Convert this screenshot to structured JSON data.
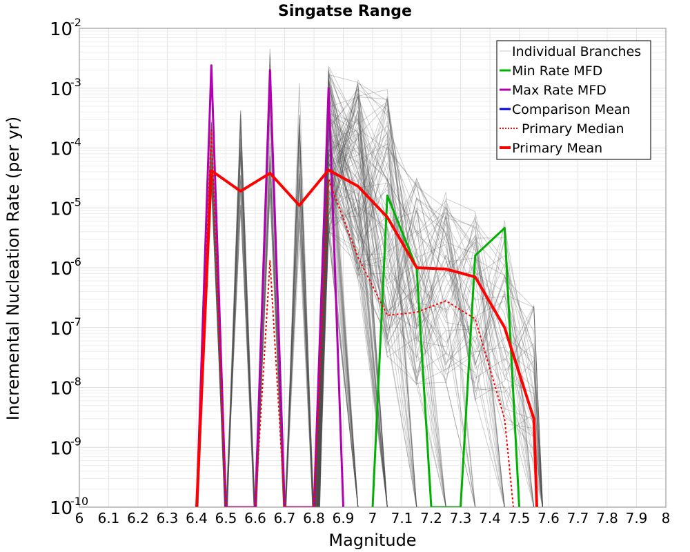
{
  "chart_data": {
    "type": "line",
    "title": "Singatse Range",
    "xlabel": "Magnitude",
    "ylabel": "Incremental Nucleation Rate (per yr)",
    "xlim": [
      6.0,
      8.0
    ],
    "ylim": [
      1e-10,
      0.01
    ],
    "yscale": "log",
    "grid": true,
    "legend_position": "top-right",
    "x_ticks": [
      "6",
      "6.1",
      "6.2",
      "6.3",
      "6.4",
      "6.5",
      "6.6",
      "6.7",
      "6.8",
      "6.9",
      "7",
      "7.1",
      "7.2",
      "7.3",
      "7.4",
      "7.5",
      "7.6",
      "7.7",
      "7.8",
      "7.9",
      "8"
    ],
    "y_ticks": [
      {
        "base": "10",
        "exp": "-10"
      },
      {
        "base": "10",
        "exp": "-9"
      },
      {
        "base": "10",
        "exp": "-8"
      },
      {
        "base": "10",
        "exp": "-7"
      },
      {
        "base": "10",
        "exp": "-6"
      },
      {
        "base": "10",
        "exp": "-5"
      },
      {
        "base": "10",
        "exp": "-4"
      },
      {
        "base": "10",
        "exp": "-3"
      },
      {
        "base": "10",
        "exp": "-2"
      }
    ],
    "legend": [
      {
        "label": "Individual Branches",
        "color": "#c8c8c8",
        "style": "solid"
      },
      {
        "label": "Min Rate MFD",
        "color": "#00b000",
        "style": "solid"
      },
      {
        "label": "Max Rate MFD",
        "color": "#b000b0",
        "style": "solid"
      },
      {
        "label": "Comparison Mean",
        "color": "#0000dd",
        "style": "solid"
      },
      {
        "label": "Primary Median",
        "color": "#ff0000",
        "style": "dotted"
      },
      {
        "label": "Primary Mean",
        "color": "#ff0000",
        "style": "solid"
      }
    ],
    "series": [
      {
        "name": "Min Rate MFD",
        "color": "#00b000",
        "width": 3,
        "dash": "",
        "x": [
          7.0,
          7.05,
          7.15,
          7.2,
          7.3,
          7.35,
          7.45,
          7.5
        ],
        "y": [
          1e-10,
          1.6e-05,
          1e-06,
          1e-10,
          1e-10,
          1.6e-06,
          4.6e-06,
          1e-10
        ]
      },
      {
        "name": "Max Rate MFD",
        "color": "#b000b0",
        "width": 3,
        "dash": "",
        "x": [
          6.4,
          6.45,
          6.5,
          6.6,
          6.65,
          6.7,
          6.8,
          6.85,
          6.9
        ],
        "y": [
          1e-10,
          0.0024,
          1e-10,
          1e-10,
          0.002,
          1e-10,
          1e-10,
          0.001,
          1e-10
        ]
      },
      {
        "name": "Primary Median",
        "color": "#ff0000",
        "width": 2,
        "dash": "3,3",
        "x": [
          6.4,
          6.45,
          6.5,
          6.6,
          6.65,
          6.7,
          6.8,
          6.85,
          6.95,
          7.05,
          7.15,
          7.25,
          7.35,
          7.45,
          7.48
        ],
        "y": [
          1e-10,
          0.0002,
          1e-10,
          1e-10,
          1.3e-06,
          1e-10,
          1e-10,
          3e-05,
          1.5e-06,
          1.6e-07,
          1.8e-07,
          2.8e-07,
          1.4e-07,
          3e-09,
          1e-10
        ]
      },
      {
        "name": "Primary Mean",
        "color": "#ff0000",
        "width": 4,
        "dash": "",
        "x": [
          6.4,
          6.45,
          6.55,
          6.65,
          6.75,
          6.85,
          6.95,
          7.05,
          7.15,
          7.25,
          7.35,
          7.45,
          7.55,
          7.56
        ],
        "y": [
          1e-10,
          4.2e-05,
          1.9e-05,
          3.8e-05,
          1.1e-05,
          4.3e-05,
          2.3e-05,
          7e-06,
          1e-06,
          9.5e-07,
          7e-07,
          1e-07,
          3e-09,
          1e-10
        ]
      }
    ]
  }
}
